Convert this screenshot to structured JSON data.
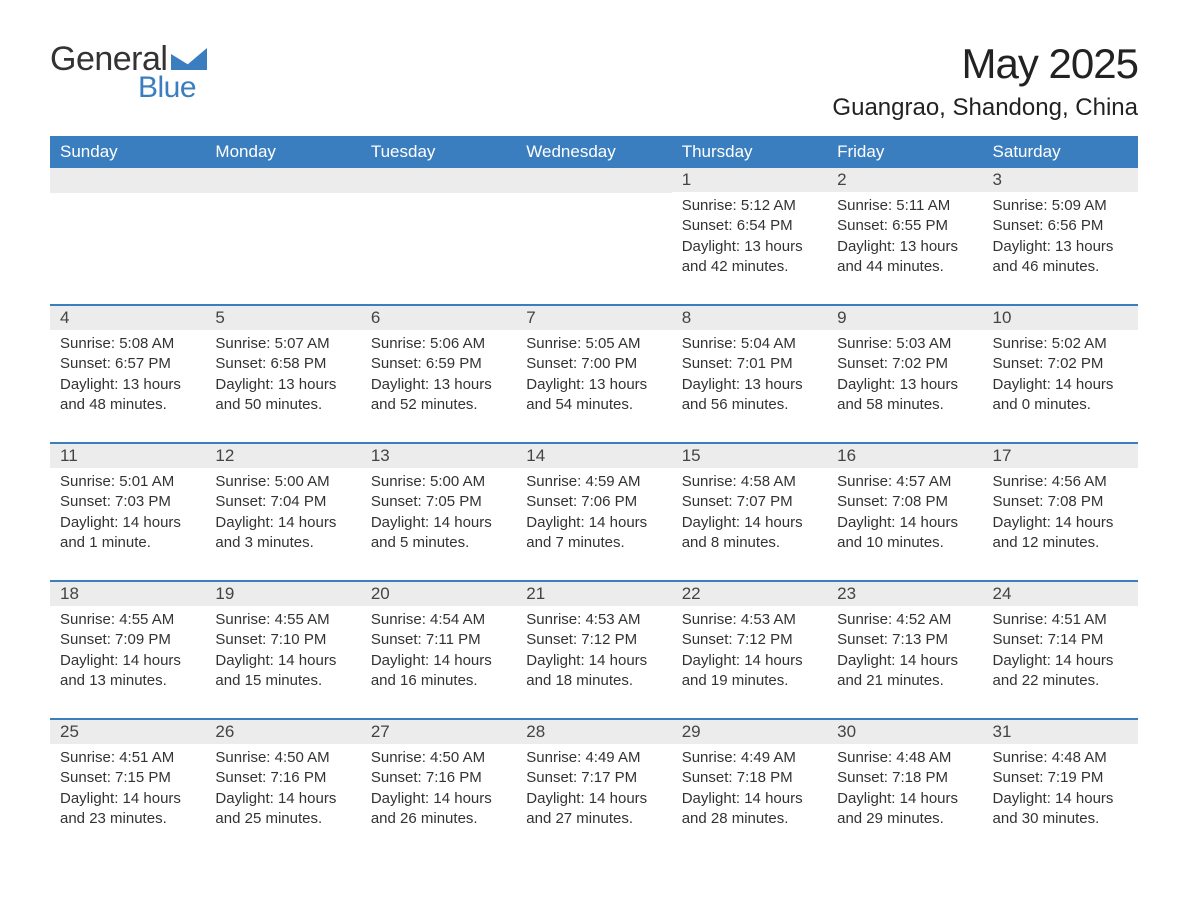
{
  "logo": {
    "text_general": "General",
    "text_blue": "Blue",
    "mark_color": "#3a7ebf"
  },
  "title": "May 2025",
  "location": "Guangrao, Shandong, China",
  "colors": {
    "header_bg": "#3a7ebf",
    "header_text": "#ffffff",
    "daynum_bg": "#ececec",
    "row_border": "#3a7ebf",
    "body_text": "#333333"
  },
  "typography": {
    "title_fontsize": 42,
    "location_fontsize": 24,
    "dow_fontsize": 17,
    "daynum_fontsize": 17,
    "body_fontsize": 15
  },
  "days_of_week": [
    "Sunday",
    "Monday",
    "Tuesday",
    "Wednesday",
    "Thursday",
    "Friday",
    "Saturday"
  ],
  "labels": {
    "sunrise": "Sunrise:",
    "sunset": "Sunset:",
    "daylight": "Daylight:"
  },
  "weeks": [
    [
      {
        "empty": true
      },
      {
        "empty": true
      },
      {
        "empty": true
      },
      {
        "empty": true
      },
      {
        "n": "1",
        "sunrise": "5:12 AM",
        "sunset": "6:54 PM",
        "daylight": "13 hours and 42 minutes."
      },
      {
        "n": "2",
        "sunrise": "5:11 AM",
        "sunset": "6:55 PM",
        "daylight": "13 hours and 44 minutes."
      },
      {
        "n": "3",
        "sunrise": "5:09 AM",
        "sunset": "6:56 PM",
        "daylight": "13 hours and 46 minutes."
      }
    ],
    [
      {
        "n": "4",
        "sunrise": "5:08 AM",
        "sunset": "6:57 PM",
        "daylight": "13 hours and 48 minutes."
      },
      {
        "n": "5",
        "sunrise": "5:07 AM",
        "sunset": "6:58 PM",
        "daylight": "13 hours and 50 minutes."
      },
      {
        "n": "6",
        "sunrise": "5:06 AM",
        "sunset": "6:59 PM",
        "daylight": "13 hours and 52 minutes."
      },
      {
        "n": "7",
        "sunrise": "5:05 AM",
        "sunset": "7:00 PM",
        "daylight": "13 hours and 54 minutes."
      },
      {
        "n": "8",
        "sunrise": "5:04 AM",
        "sunset": "7:01 PM",
        "daylight": "13 hours and 56 minutes."
      },
      {
        "n": "9",
        "sunrise": "5:03 AM",
        "sunset": "7:02 PM",
        "daylight": "13 hours and 58 minutes."
      },
      {
        "n": "10",
        "sunrise": "5:02 AM",
        "sunset": "7:02 PM",
        "daylight": "14 hours and 0 minutes."
      }
    ],
    [
      {
        "n": "11",
        "sunrise": "5:01 AM",
        "sunset": "7:03 PM",
        "daylight": "14 hours and 1 minute."
      },
      {
        "n": "12",
        "sunrise": "5:00 AM",
        "sunset": "7:04 PM",
        "daylight": "14 hours and 3 minutes."
      },
      {
        "n": "13",
        "sunrise": "5:00 AM",
        "sunset": "7:05 PM",
        "daylight": "14 hours and 5 minutes."
      },
      {
        "n": "14",
        "sunrise": "4:59 AM",
        "sunset": "7:06 PM",
        "daylight": "14 hours and 7 minutes."
      },
      {
        "n": "15",
        "sunrise": "4:58 AM",
        "sunset": "7:07 PM",
        "daylight": "14 hours and 8 minutes."
      },
      {
        "n": "16",
        "sunrise": "4:57 AM",
        "sunset": "7:08 PM",
        "daylight": "14 hours and 10 minutes."
      },
      {
        "n": "17",
        "sunrise": "4:56 AM",
        "sunset": "7:08 PM",
        "daylight": "14 hours and 12 minutes."
      }
    ],
    [
      {
        "n": "18",
        "sunrise": "4:55 AM",
        "sunset": "7:09 PM",
        "daylight": "14 hours and 13 minutes."
      },
      {
        "n": "19",
        "sunrise": "4:55 AM",
        "sunset": "7:10 PM",
        "daylight": "14 hours and 15 minutes."
      },
      {
        "n": "20",
        "sunrise": "4:54 AM",
        "sunset": "7:11 PM",
        "daylight": "14 hours and 16 minutes."
      },
      {
        "n": "21",
        "sunrise": "4:53 AM",
        "sunset": "7:12 PM",
        "daylight": "14 hours and 18 minutes."
      },
      {
        "n": "22",
        "sunrise": "4:53 AM",
        "sunset": "7:12 PM",
        "daylight": "14 hours and 19 minutes."
      },
      {
        "n": "23",
        "sunrise": "4:52 AM",
        "sunset": "7:13 PM",
        "daylight": "14 hours and 21 minutes."
      },
      {
        "n": "24",
        "sunrise": "4:51 AM",
        "sunset": "7:14 PM",
        "daylight": "14 hours and 22 minutes."
      }
    ],
    [
      {
        "n": "25",
        "sunrise": "4:51 AM",
        "sunset": "7:15 PM",
        "daylight": "14 hours and 23 minutes."
      },
      {
        "n": "26",
        "sunrise": "4:50 AM",
        "sunset": "7:16 PM",
        "daylight": "14 hours and 25 minutes."
      },
      {
        "n": "27",
        "sunrise": "4:50 AM",
        "sunset": "7:16 PM",
        "daylight": "14 hours and 26 minutes."
      },
      {
        "n": "28",
        "sunrise": "4:49 AM",
        "sunset": "7:17 PM",
        "daylight": "14 hours and 27 minutes."
      },
      {
        "n": "29",
        "sunrise": "4:49 AM",
        "sunset": "7:18 PM",
        "daylight": "14 hours and 28 minutes."
      },
      {
        "n": "30",
        "sunrise": "4:48 AM",
        "sunset": "7:18 PM",
        "daylight": "14 hours and 29 minutes."
      },
      {
        "n": "31",
        "sunrise": "4:48 AM",
        "sunset": "7:19 PM",
        "daylight": "14 hours and 30 minutes."
      }
    ]
  ]
}
